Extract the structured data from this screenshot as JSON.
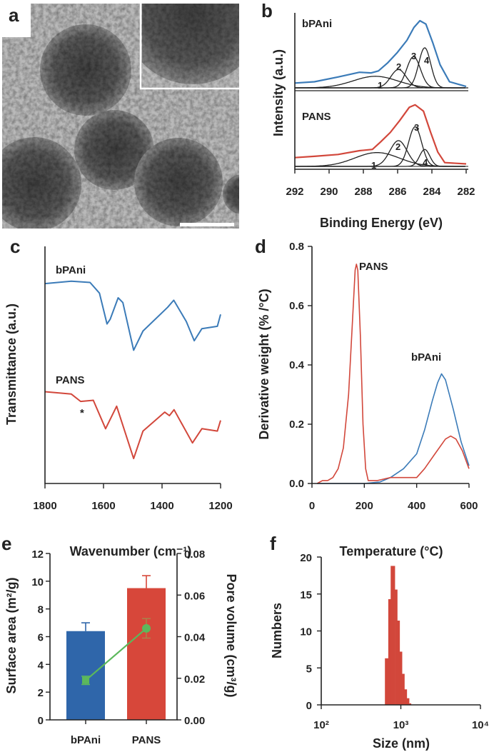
{
  "panel_labels": {
    "a": "a",
    "b": "b",
    "c": "c",
    "d": "d",
    "e": "e",
    "f": "f"
  },
  "colors": {
    "bPAni": "#3b7bb8",
    "PANS": "#d2473b",
    "pore_volume": "#5cb85c",
    "components": "#222222"
  },
  "panel_a": {
    "type": "image",
    "content": "TEM micrograph with inset and scale bar"
  },
  "chart_data": [
    {
      "panel": "b",
      "type": "line",
      "xlabel": "Binding Energy (eV)",
      "ylabel": "Intensity (a.u.)",
      "xlim": [
        292,
        282
      ],
      "xticks": [
        "292",
        "290",
        "288",
        "286",
        "284",
        "282"
      ],
      "x_reversed": true,
      "grid": false,
      "subplots": [
        {
          "label": "bPAni",
          "envelope_color": "#3b7bb8",
          "envelope": [
            [
              292,
              0.07
            ],
            [
              290.86,
              0.09
            ],
            [
              289.48,
              0.16
            ],
            [
              288.23,
              0.23
            ],
            [
              287.54,
              0.22
            ],
            [
              287.12,
              0.25
            ],
            [
              286.57,
              0.37
            ],
            [
              286.02,
              0.52
            ],
            [
              285.46,
              0.7
            ],
            [
              285.05,
              0.89
            ],
            [
              284.7,
              0.99
            ],
            [
              284.35,
              0.94
            ],
            [
              283.94,
              0.66
            ],
            [
              283.52,
              0.34
            ],
            [
              282.97,
              0.09
            ],
            [
              282.0,
              0.02
            ]
          ],
          "components": [
            {
              "label": "1",
              "center": 287.3,
              "sigma": 1.3,
              "height": 0.17
            },
            {
              "label": "2",
              "center": 285.95,
              "sigma": 0.45,
              "height": 0.27
            },
            {
              "label": "3",
              "center": 285.07,
              "sigma": 0.4,
              "height": 0.46
            },
            {
              "label": "4",
              "center": 284.42,
              "sigma": 0.35,
              "height": 0.59
            }
          ]
        },
        {
          "label": "PANS",
          "envelope_color": "#d2473b",
          "envelope": [
            [
              292,
              0.14
            ],
            [
              290.86,
              0.16
            ],
            [
              289.48,
              0.19
            ],
            [
              288.23,
              0.25
            ],
            [
              287.47,
              0.27
            ],
            [
              286.99,
              0.39
            ],
            [
              286.43,
              0.54
            ],
            [
              285.88,
              0.73
            ],
            [
              285.32,
              0.94
            ],
            [
              284.98,
              0.98
            ],
            [
              284.49,
              0.88
            ],
            [
              284.07,
              0.54
            ],
            [
              283.66,
              0.23
            ],
            [
              283.25,
              0.06
            ],
            [
              282.0,
              0.04
            ]
          ],
          "components": [
            {
              "label": "1",
              "center": 287.2,
              "sigma": 1.3,
              "height": 0.22
            },
            {
              "label": "2",
              "center": 285.95,
              "sigma": 0.5,
              "height": 0.41
            },
            {
              "label": "3",
              "center": 284.98,
              "sigma": 0.38,
              "height": 0.63
            },
            {
              "label": "4",
              "center": 284.42,
              "sigma": 0.3,
              "height": 0.27
            }
          ]
        }
      ]
    },
    {
      "panel": "c",
      "type": "line",
      "xlabel": "Wavenumber (cm⁻¹)",
      "ylabel": "Transmittance (a.u.)",
      "xlim": [
        1800,
        1200
      ],
      "ylim": [
        0,
        1
      ],
      "xticks": [
        "1800",
        "1600",
        "1400",
        "1200"
      ],
      "x_reversed": true,
      "grid": false,
      "annotation": "*",
      "annotation_x": 1670,
      "series": [
        {
          "name": "bPAni",
          "color": "#3b7bb8",
          "points": [
            [
              1800,
              0.843
            ],
            [
              1710,
              0.853
            ],
            [
              1646,
              0.848
            ],
            [
              1614,
              0.803
            ],
            [
              1588,
              0.673
            ],
            [
              1577,
              0.693
            ],
            [
              1550,
              0.783
            ],
            [
              1534,
              0.763
            ],
            [
              1497,
              0.562
            ],
            [
              1465,
              0.643
            ],
            [
              1381,
              0.743
            ],
            [
              1360,
              0.773
            ],
            [
              1317,
              0.683
            ],
            [
              1290,
              0.602
            ],
            [
              1264,
              0.653
            ],
            [
              1211,
              0.663
            ],
            [
              1200,
              0.713
            ]
          ]
        },
        {
          "name": "PANS",
          "color": "#d2473b",
          "points": [
            [
              1800,
              0.387
            ],
            [
              1710,
              0.377
            ],
            [
              1678,
              0.346
            ],
            [
              1635,
              0.351
            ],
            [
              1593,
              0.231
            ],
            [
              1555,
              0.326
            ],
            [
              1497,
              0.105
            ],
            [
              1465,
              0.221
            ],
            [
              1391,
              0.301
            ],
            [
              1375,
              0.286
            ],
            [
              1359,
              0.311
            ],
            [
              1296,
              0.171
            ],
            [
              1264,
              0.231
            ],
            [
              1211,
              0.221
            ],
            [
              1200,
              0.266
            ]
          ]
        }
      ]
    },
    {
      "panel": "d",
      "type": "line",
      "xlabel": "Temperature (°C)",
      "ylabel": "Derivative weight (% /°C)",
      "xlim": [
        0,
        600
      ],
      "ylim": [
        0,
        0.8
      ],
      "xticks": [
        "0",
        "200",
        "400",
        "600"
      ],
      "yticks": [
        "0.0",
        "0.2",
        "0.4",
        "0.6",
        "0.8"
      ],
      "grid": false,
      "series": [
        {
          "name": "PANS",
          "color": "#d2473b",
          "points": [
            [
              20,
              0
            ],
            [
              40,
              0.01
            ],
            [
              60,
              0.01
            ],
            [
              80,
              0.02
            ],
            [
              100,
              0.05
            ],
            [
              120,
              0.12
            ],
            [
              140,
              0.3
            ],
            [
              155,
              0.55
            ],
            [
              165,
              0.72
            ],
            [
              170,
              0.74
            ],
            [
              175,
              0.72
            ],
            [
              185,
              0.5
            ],
            [
              195,
              0.2
            ],
            [
              205,
              0.05
            ],
            [
              215,
              0.01
            ],
            [
              250,
              0.01
            ],
            [
              300,
              0.02
            ],
            [
              350,
              0.02
            ],
            [
              400,
              0.02
            ],
            [
              430,
              0.05
            ],
            [
              470,
              0.1
            ],
            [
              510,
              0.15
            ],
            [
              530,
              0.16
            ],
            [
              550,
              0.15
            ],
            [
              575,
              0.11
            ],
            [
              600,
              0.05
            ]
          ]
        },
        {
          "name": "bPAni",
          "color": "#3b7bb8",
          "points": [
            [
              20,
              0
            ],
            [
              100,
              0
            ],
            [
              200,
              0
            ],
            [
              260,
              0.005
            ],
            [
              300,
              0.02
            ],
            [
              350,
              0.05
            ],
            [
              400,
              0.1
            ],
            [
              430,
              0.18
            ],
            [
              460,
              0.28
            ],
            [
              480,
              0.34
            ],
            [
              495,
              0.37
            ],
            [
              510,
              0.35
            ],
            [
              540,
              0.25
            ],
            [
              570,
              0.14
            ],
            [
              600,
              0.06
            ]
          ]
        }
      ]
    },
    {
      "panel": "e",
      "type": "bar",
      "categories": [
        "bPAni",
        "PANS"
      ],
      "ylabel": "Surface area (m²/g)",
      "y2label": "Pore volume (cm³/g)",
      "ylim": [
        0,
        12
      ],
      "y2lim": [
        0,
        0.08
      ],
      "yticks": [
        "0",
        "2",
        "4",
        "6",
        "8",
        "10",
        "12"
      ],
      "y2ticks": [
        "0.00",
        "0.02",
        "0.04",
        "0.06",
        "0.08"
      ],
      "grid": false,
      "series": [
        {
          "kind": "bar",
          "axis": "left",
          "values": [
            6.4,
            9.5
          ],
          "errors": [
            0.6,
            0.9
          ],
          "colors": [
            "#2f66aa",
            "#d7473a"
          ]
        },
        {
          "kind": "line",
          "axis": "right",
          "values": [
            0.019,
            0.044
          ],
          "errors": [
            0.002,
            0.0047
          ],
          "color": "#5cb85c"
        }
      ]
    },
    {
      "panel": "f",
      "type": "bar",
      "xlabel": "Size (nm)",
      "ylabel": "Numbers",
      "xscale": "log",
      "xlim": [
        100,
        10000
      ],
      "ylim": [
        0,
        20
      ],
      "xticks": [
        "10²",
        "10³",
        "10⁴"
      ],
      "yticks": [
        "0",
        "5",
        "10",
        "15",
        "20"
      ],
      "grid": false,
      "color": "#d2473b",
      "bin_edges": [
        631,
        695,
        745,
        841,
        902,
        966,
        1035,
        1109,
        1188,
        1271,
        1343
      ],
      "counts": [
        6.3,
        14.3,
        18.8,
        15.6,
        11.4,
        7.2,
        4.2,
        2.1,
        0.9,
        0.2
      ]
    }
  ]
}
